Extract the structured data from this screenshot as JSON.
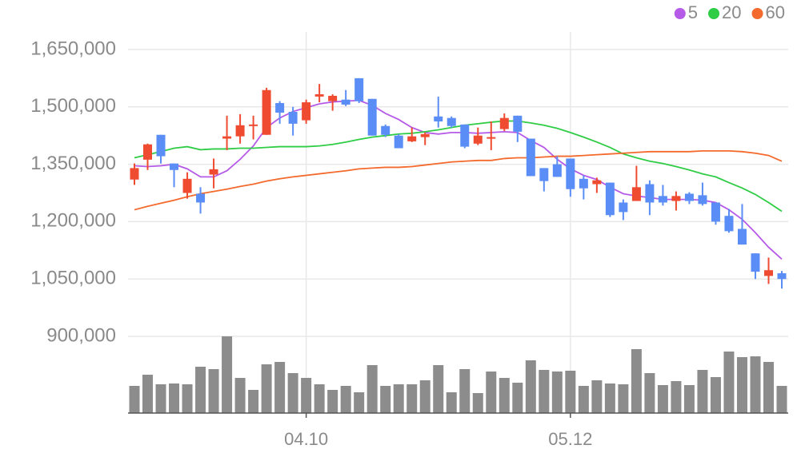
{
  "chart_data": {
    "type": "candlestick",
    "categories": [
      null,
      null,
      null,
      null,
      null,
      null,
      null,
      null,
      null,
      null,
      null,
      null,
      null,
      "04.10",
      null,
      null,
      null,
      null,
      null,
      null,
      null,
      null,
      null,
      null,
      null,
      null,
      null,
      null,
      null,
      null,
      null,
      null,
      null,
      "05.12",
      null,
      null,
      null,
      null,
      null,
      null,
      null,
      null,
      null,
      null,
      null,
      null,
      null,
      null,
      null,
      null
    ],
    "ohlc": {
      "open": [
        1310000,
        1362000,
        1427000,
        1352000,
        1275000,
        1273000,
        1323000,
        1417000,
        1423000,
        1450000,
        1427000,
        1510000,
        1487000,
        1465000,
        1527000,
        1515000,
        1519000,
        1575000,
        1521000,
        1450000,
        1425000,
        1410000,
        1421000,
        1475000,
        1471000,
        1454000,
        1404000,
        1417000,
        1442000,
        1477000,
        1417000,
        1340000,
        1350000,
        1365000,
        1312000,
        1298000,
        1302000,
        1250000,
        1254000,
        1298000,
        1267000,
        1254000,
        1273000,
        1269000,
        1250000,
        1215000,
        1181000,
        1117000,
        1058000,
        1065000
      ],
      "high": [
        1352000,
        1404000,
        1427000,
        1352000,
        1329000,
        1290000,
        1365000,
        1477000,
        1481000,
        1477000,
        1550000,
        1515000,
        1500000,
        1519000,
        1560000,
        1533000,
        1544000,
        1575000,
        1521000,
        1454000,
        1429000,
        1446000,
        1433000,
        1527000,
        1475000,
        1454000,
        1446000,
        1462000,
        1483000,
        1477000,
        1417000,
        1340000,
        1371000,
        1365000,
        1321000,
        1315000,
        1302000,
        1258000,
        1346000,
        1308000,
        1296000,
        1279000,
        1277000,
        1302000,
        1250000,
        1233000,
        1246000,
        1117000,
        1106000,
        1071000
      ],
      "low": [
        1296000,
        1335000,
        1352000,
        1290000,
        1260000,
        1221000,
        1287000,
        1387000,
        1404000,
        1415000,
        1427000,
        1456000,
        1425000,
        1456000,
        1512000,
        1490000,
        1502000,
        1510000,
        1425000,
        1421000,
        1392000,
        1408000,
        1400000,
        1446000,
        1446000,
        1392000,
        1400000,
        1387000,
        1437000,
        1408000,
        1319000,
        1279000,
        1317000,
        1265000,
        1258000,
        1275000,
        1212000,
        1204000,
        1254000,
        1217000,
        1242000,
        1229000,
        1246000,
        1242000,
        1192000,
        1171000,
        1140000,
        1050000,
        1037000,
        1025000
      ],
      "close": [
        1340000,
        1402000,
        1371000,
        1335000,
        1312000,
        1250000,
        1337000,
        1423000,
        1452000,
        1454000,
        1544000,
        1485000,
        1456000,
        1512000,
        1533000,
        1529000,
        1506000,
        1515000,
        1425000,
        1427000,
        1392000,
        1423000,
        1429000,
        1462000,
        1450000,
        1396000,
        1425000,
        1421000,
        1471000,
        1435000,
        1319000,
        1306000,
        1317000,
        1285000,
        1287000,
        1308000,
        1217000,
        1225000,
        1290000,
        1250000,
        1250000,
        1267000,
        1254000,
        1246000,
        1200000,
        1175000,
        1140000,
        1069000,
        1073000,
        1050000
      ]
    },
    "up_color": "#ef4b30",
    "down_color": "#5a8ef6",
    "volume": [
      34,
      48,
      36,
      37,
      36,
      58,
      55,
      96,
      44,
      29,
      61,
      64,
      50,
      44,
      36,
      29,
      34,
      26,
      60,
      34,
      36,
      36,
      41,
      60,
      26,
      55,
      25,
      52,
      44,
      38,
      66,
      54,
      52,
      53,
      34,
      41,
      37,
      36,
      80,
      50,
      35,
      40,
      35,
      54,
      45,
      77,
      70,
      71,
      64,
      34
    ],
    "volume_color": "#8c8c8c",
    "series": [
      {
        "name": "5",
        "color": "#b55be8",
        "values": [
          1346000,
          1344000,
          1346000,
          1350000,
          1338000,
          1317000,
          1317000,
          1333000,
          1363000,
          1398000,
          1446000,
          1471000,
          1488000,
          1498000,
          1508000,
          1513000,
          1515000,
          1517000,
          1504000,
          1483000,
          1467000,
          1446000,
          1433000,
          1429000,
          1433000,
          1433000,
          1431000,
          1433000,
          1435000,
          1433000,
          1412000,
          1394000,
          1363000,
          1338000,
          1321000,
          1310000,
          1290000,
          1273000,
          1267000,
          1263000,
          1258000,
          1258000,
          1258000,
          1256000,
          1250000,
          1231000,
          1206000,
          1171000,
          1133000,
          1102000
        ]
      },
      {
        "name": "20",
        "color": "#2fcc45",
        "values": [
          1367000,
          1375000,
          1383000,
          1392000,
          1396000,
          1388000,
          1390000,
          1390000,
          1392000,
          1392000,
          1394000,
          1396000,
          1396000,
          1396000,
          1398000,
          1402000,
          1408000,
          1415000,
          1421000,
          1425000,
          1429000,
          1431000,
          1435000,
          1440000,
          1446000,
          1452000,
          1456000,
          1460000,
          1463000,
          1463000,
          1458000,
          1452000,
          1444000,
          1433000,
          1421000,
          1408000,
          1394000,
          1377000,
          1367000,
          1358000,
          1352000,
          1344000,
          1335000,
          1325000,
          1317000,
          1302000,
          1288000,
          1271000,
          1250000,
          1227000
        ]
      },
      {
        "name": "60",
        "color": "#f4692c",
        "values": [
          1231000,
          1240000,
          1248000,
          1256000,
          1265000,
          1273000,
          1279000,
          1285000,
          1292000,
          1298000,
          1306000,
          1312000,
          1317000,
          1321000,
          1325000,
          1329000,
          1333000,
          1338000,
          1340000,
          1342000,
          1342000,
          1344000,
          1348000,
          1352000,
          1356000,
          1358000,
          1360000,
          1360000,
          1365000,
          1367000,
          1367000,
          1369000,
          1371000,
          1371000,
          1373000,
          1375000,
          1377000,
          1379000,
          1381000,
          1383000,
          1383000,
          1383000,
          1383000,
          1385000,
          1385000,
          1385000,
          1383000,
          1379000,
          1373000,
          1358000
        ]
      }
    ],
    "ylim": [
      900000,
      1650000
    ],
    "yticks": [
      {
        "value": 900000,
        "label": "900,000"
      },
      {
        "value": 1050000,
        "label": "1,050,000"
      },
      {
        "value": 1200000,
        "label": "1,200,000"
      },
      {
        "value": 1350000,
        "label": "1,350,000"
      },
      {
        "value": 1500000,
        "label": "1,500,000"
      },
      {
        "value": 1650000,
        "label": "1,650,000"
      }
    ],
    "grid": true,
    "legend": "top-right"
  }
}
